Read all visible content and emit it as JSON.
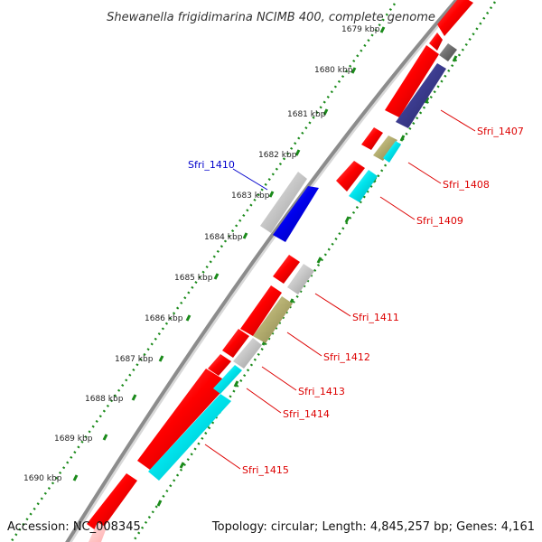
{
  "title": "Shewanella frigidimarina NCIMB 400, complete genome",
  "footer": {
    "accession": "Accession: NC_008345",
    "summary": "Topology: circular; Length: 4,845,257 bp; Genes: 4,161"
  },
  "colors": {
    "backbone": "#8c8c8c",
    "tick": "#1a8a1a",
    "red": "#ff0000",
    "blue": "#0000ee",
    "navy": "#3c3c90",
    "cyan": "#00e5ee",
    "khaki": "#b4ae70",
    "silver": "#c8c8c8",
    "gray": "#707070",
    "label_red": "#dd0000",
    "label_blue": "#0000cc"
  },
  "kbp_labels": [
    "1679 kbp",
    "1680 kbp",
    "1681 kbp",
    "1682 kbp",
    "1683 kbp",
    "1684 kbp",
    "1685 kbp",
    "1686 kbp",
    "1687 kbp",
    "1688 kbp",
    "1689 kbp",
    "1690 kbp"
  ],
  "gene_labels": [
    {
      "name": "Sfri_1407",
      "color": "label_red"
    },
    {
      "name": "Sfri_1408",
      "color": "label_red"
    },
    {
      "name": "Sfri_1409",
      "color": "label_red"
    },
    {
      "name": "Sfri_1410",
      "color": "label_blue"
    },
    {
      "name": "Sfri_1411",
      "color": "label_red"
    },
    {
      "name": "Sfri_1412",
      "color": "label_red"
    },
    {
      "name": "Sfri_1413",
      "color": "label_red"
    },
    {
      "name": "Sfri_1414",
      "color": "label_red"
    },
    {
      "name": "Sfri_1415",
      "color": "label_red"
    }
  ]
}
